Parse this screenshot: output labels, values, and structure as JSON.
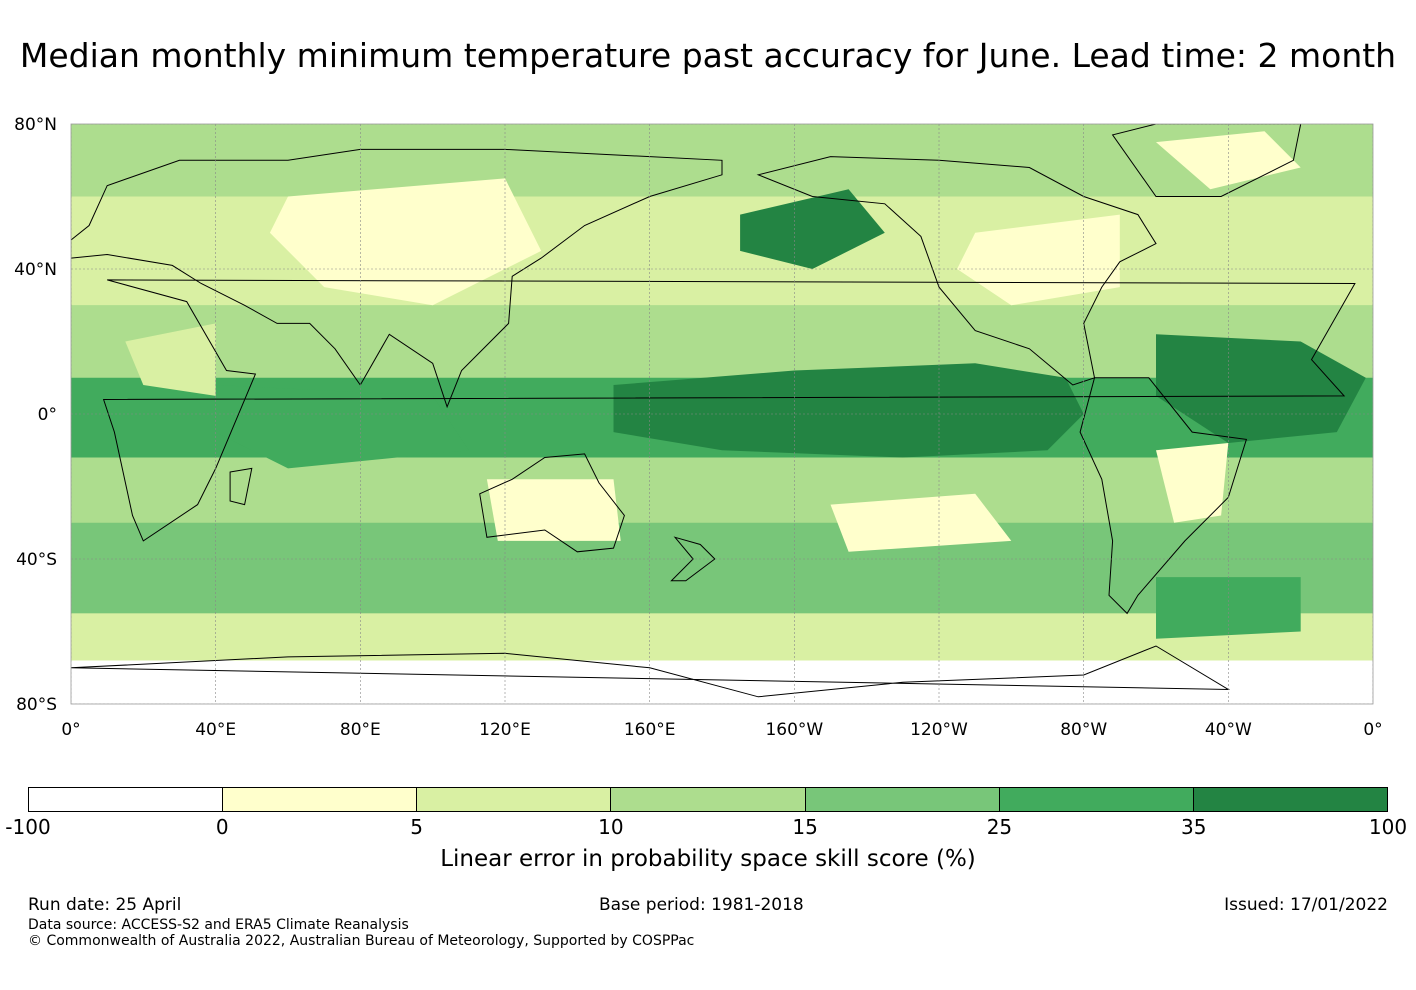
{
  "title": "Median monthly minimum temperature past accuracy for June. Lead time: 2 month",
  "map": {
    "lat_labels": [
      "80°N",
      "40°N",
      "0°",
      "40°S",
      "80°S"
    ],
    "lon_labels": [
      "0°",
      "40°E",
      "80°E",
      "120°E",
      "160°E",
      "160°W",
      "120°W",
      "80°W",
      "40°W",
      "0°"
    ],
    "lat_lines": [
      80,
      40,
      0,
      -40,
      -80
    ],
    "lon_lines": [
      0,
      40,
      80,
      120,
      160,
      -160,
      -120,
      -80,
      -40,
      0
    ],
    "projection": "plate carree, 0°E to 360°E, 80°S to 80°N",
    "gridlines": true,
    "coastlines": true
  },
  "colorbar": {
    "ticks": [
      "-100",
      "0",
      "5",
      "10",
      "15",
      "25",
      "35",
      "100"
    ],
    "colors": [
      "#ffffff",
      "#ffffcc",
      "#d9f0a3",
      "#addd8e",
      "#78c679",
      "#41ab5d",
      "#238443"
    ],
    "label": "Linear error in probability space skill score (%)"
  },
  "footer": {
    "run_date": "Run date: 25 April",
    "base_period": "Base period: 1981-2018",
    "issued": "Issued: 17/01/2022",
    "data_source": "Data source: ACCESS-S2 and ERA5 Climate Reanalysis",
    "copyright": "© Commonwealth of Australia 2022, Australian Bureau of Meteorology, Supported by COSPPac"
  }
}
